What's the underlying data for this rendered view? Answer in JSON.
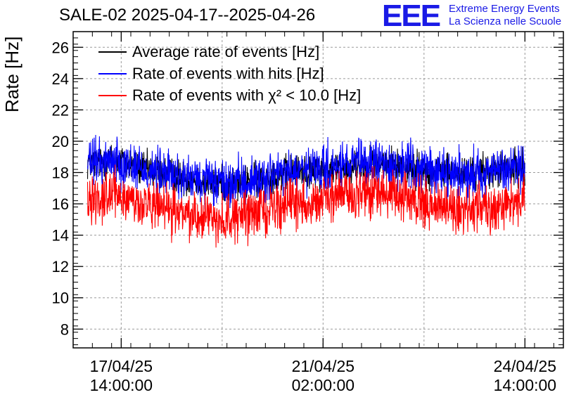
{
  "header": {
    "title": "SALE-02 2025-04-17--2025-04-26",
    "logo_mark": "EEE",
    "logo_line1": "Extreme Energy Events",
    "logo_line2": "La Scienza nelle Scuole"
  },
  "colors": {
    "average": "#000000",
    "hits": "#0000ff",
    "chi2": "#ff0000",
    "grid": "#9a9a9a",
    "logo": "#1a1ae6"
  },
  "chart_data": {
    "type": "line",
    "title": "SALE-02 2025-04-17--2025-04-26",
    "ylabel": "Rate [Hz]",
    "xlabel": "",
    "ylim": [
      6.8,
      27.0
    ],
    "xlim": [
      "2025-04-16 18:00",
      "2025-04-25 06:00"
    ],
    "grid": true,
    "legend_position": "top-left",
    "yticks": [
      8,
      10,
      12,
      14,
      16,
      18,
      20,
      22,
      24,
      26
    ],
    "xticks": [
      {
        "x": "2025-04-17 14:00",
        "label_date": "17/04/25",
        "label_time": "14:00:00"
      },
      {
        "x": "2025-04-21 02:00",
        "label_date": "21/04/25",
        "label_time": "02:00:00"
      },
      {
        "x": "2025-04-24 14:00",
        "label_date": "24/04/25",
        "label_time": "14:00:00"
      }
    ],
    "series": [
      {
        "name": "Average rate of events [Hz]",
        "color": "#000000",
        "x": [
          "2025-04-17 00:00",
          "2025-04-17 12:00",
          "2025-04-18 00:00",
          "2025-04-18 12:00",
          "2025-04-19 00:00",
          "2025-04-19 12:00",
          "2025-04-20 00:00",
          "2025-04-20 12:00",
          "2025-04-21 00:00",
          "2025-04-21 12:00",
          "2025-04-22 00:00",
          "2025-04-22 12:00",
          "2025-04-23 00:00",
          "2025-04-23 12:00",
          "2025-04-24 00:00",
          "2025-04-24 12:00",
          "2025-04-24 14:00"
        ],
        "values": [
          18.6,
          18.8,
          18.2,
          17.8,
          17.4,
          17.2,
          17.6,
          18.0,
          18.1,
          18.4,
          18.6,
          18.4,
          18.1,
          17.9,
          18.1,
          18.3,
          18.4
        ]
      },
      {
        "name": "Rate of events with hits [Hz]",
        "color": "#0000ff",
        "x": [
          "2025-04-17 00:00",
          "2025-04-17 12:00",
          "2025-04-18 00:00",
          "2025-04-18 12:00",
          "2025-04-19 00:00",
          "2025-04-19 12:00",
          "2025-04-20 00:00",
          "2025-04-20 12:00",
          "2025-04-21 00:00",
          "2025-04-21 12:00",
          "2025-04-22 00:00",
          "2025-04-22 12:00",
          "2025-04-23 00:00",
          "2025-04-23 12:00",
          "2025-04-24 00:00",
          "2025-04-24 12:00",
          "2025-04-24 14:00"
        ],
        "values": [
          18.6,
          18.8,
          18.2,
          17.8,
          17.4,
          17.2,
          17.6,
          18.0,
          18.1,
          18.4,
          18.6,
          18.4,
          18.1,
          17.9,
          18.1,
          18.3,
          18.4
        ]
      },
      {
        "name": "Rate of events with χ² < 10.0 [Hz]",
        "color": "#ff0000",
        "x": [
          "2025-04-17 00:00",
          "2025-04-17 12:00",
          "2025-04-18 00:00",
          "2025-04-18 12:00",
          "2025-04-19 00:00",
          "2025-04-19 12:00",
          "2025-04-20 00:00",
          "2025-04-20 12:00",
          "2025-04-21 00:00",
          "2025-04-21 12:00",
          "2025-04-22 00:00",
          "2025-04-22 12:00",
          "2025-04-23 00:00",
          "2025-04-23 12:00",
          "2025-04-24 00:00",
          "2025-04-24 12:00",
          "2025-04-24 14:00"
        ],
        "values": [
          16.4,
          16.6,
          15.9,
          15.5,
          15.2,
          15.0,
          15.6,
          16.0,
          16.2,
          16.6,
          16.7,
          16.3,
          15.9,
          15.6,
          15.9,
          16.2,
          16.4
        ]
      }
    ]
  }
}
